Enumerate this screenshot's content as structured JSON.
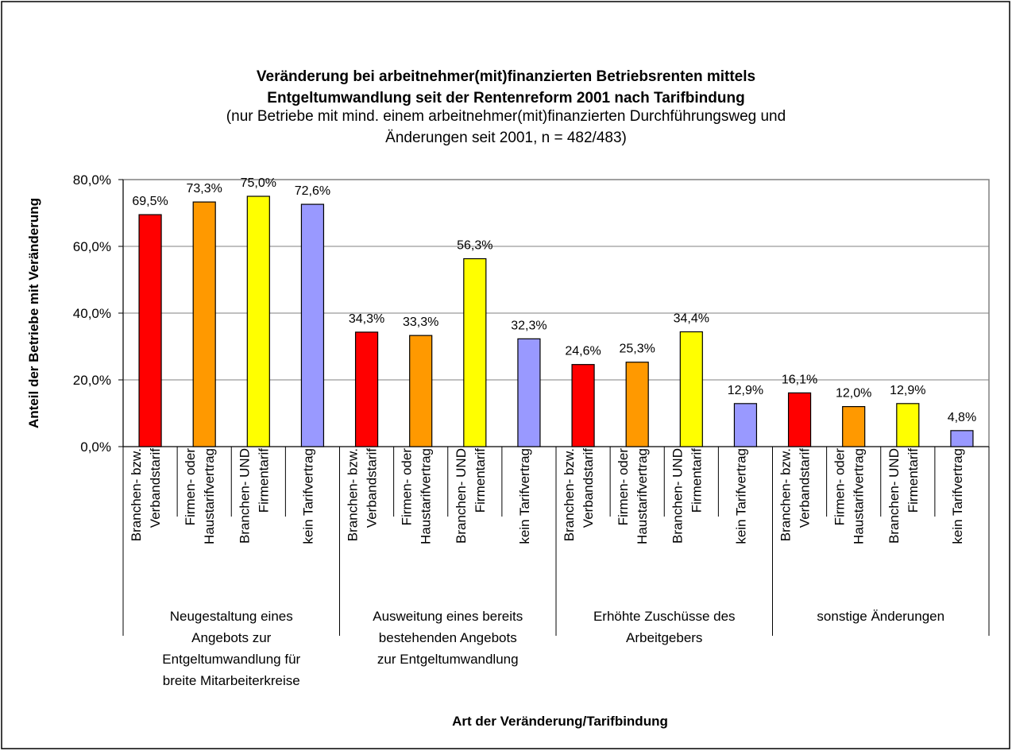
{
  "chart_data": {
    "type": "bar",
    "title": "Veränderung bei arbeitnehmer(mit)finanzierten Betriebsrenten mittels\nEntgeltumwandlung seit der Rentenreform 2001 nach Tarifbindung",
    "subtitle": "(nur Betriebe mit mind. einem arbeitnehmer(mit)finanzierten Durchführungsweg und\nÄnderungen seit 2001, n = 482/483)",
    "x_label": "Art der Veränderung/Tarifbindung",
    "y_label": "Anteil der Betriebe mit Veränderung",
    "categories": [
      "Neugestaltung eines\nAngebots zur\nEntgeltumwandlung für\nbreite Mitarbeiterkreise",
      "Ausweitung eines bereits\nbestehenden Angebots\nzur Entgeltumwandlung",
      "Erhöhte Zuschüsse des\nArbeitgebers",
      "sonstige Änderungen"
    ],
    "series": [
      {
        "name": "Branchen- bzw.\nVerbandstarif",
        "color": "#ff0000",
        "values": [
          69.5,
          34.3,
          24.6,
          16.1
        ],
        "value_labels": [
          "69,5%",
          "34,3%",
          "24,6%",
          "16,1%"
        ]
      },
      {
        "name": "Firmen- oder\nHaustarifvertrag",
        "color": "#ff9900",
        "values": [
          73.3,
          33.3,
          25.3,
          12.0
        ],
        "value_labels": [
          "73,3%",
          "33,3%",
          "25,3%",
          "12,0%"
        ]
      },
      {
        "name": "Branchen- UND\nFirmentarif",
        "color": "#ffff00",
        "values": [
          75.0,
          56.3,
          34.4,
          12.9
        ],
        "value_labels": [
          "75,0%",
          "56,3%",
          "34,4%",
          "12,9%"
        ]
      },
      {
        "name": "kein Tarifvertrag",
        "color": "#9999ff",
        "values": [
          72.6,
          32.3,
          12.9,
          4.8
        ],
        "value_labels": [
          "72,6%",
          "32,3%",
          "12,9%",
          "4,8%"
        ]
      }
    ],
    "ylim": [
      0,
      80
    ],
    "yticks": [
      {
        "value": 0,
        "label": "0,0%"
      },
      {
        "value": 20,
        "label": "20,0%"
      },
      {
        "value": 40,
        "label": "40,0%"
      },
      {
        "value": 60,
        "label": "60,0%"
      },
      {
        "value": 80,
        "label": "80,0%"
      }
    ],
    "grid": true
  }
}
